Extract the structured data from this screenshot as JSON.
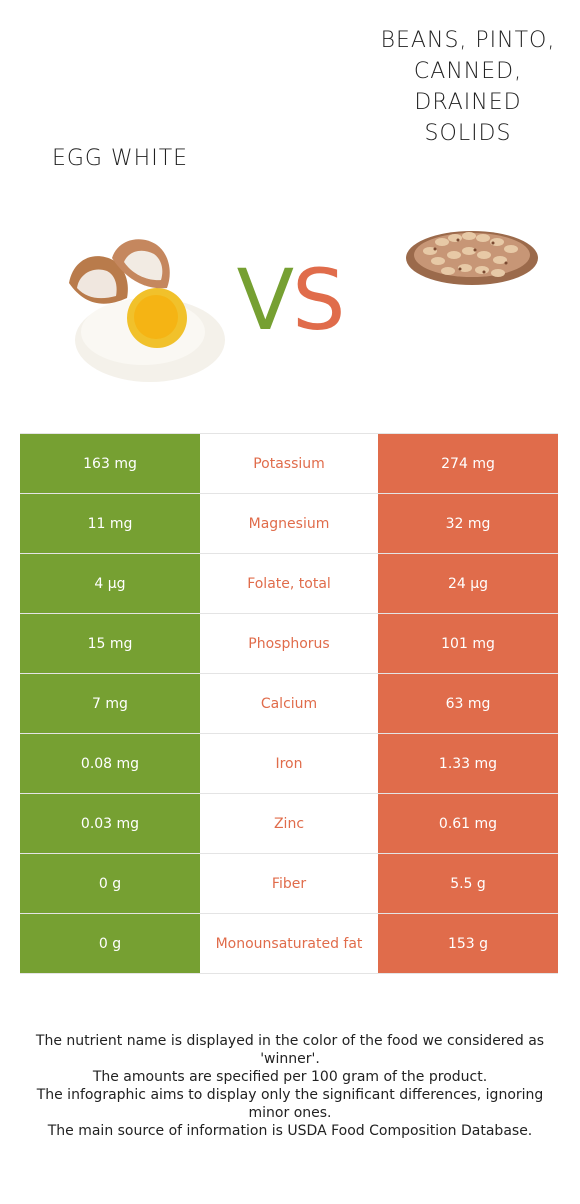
{
  "header": {
    "left_food": "EGG WHITE",
    "right_food": "BEANS, PINTO, CANNED, DRAINED SOLIDS",
    "vs_v": "V",
    "vs_s": "S"
  },
  "colors": {
    "left_winner": "#76a032",
    "right_winner": "#e06c4b"
  },
  "nutrients": [
    {
      "nutrient": "Potassium",
      "left": "163 mg",
      "right": "274 mg"
    },
    {
      "nutrient": "Magnesium",
      "left": "11 mg",
      "right": "32 mg"
    },
    {
      "nutrient": "Folate, total",
      "left": "4 µg",
      "right": "24 µg"
    },
    {
      "nutrient": "Phosphorus",
      "left": "15 mg",
      "right": "101 mg"
    },
    {
      "nutrient": "Calcium",
      "left": "7 mg",
      "right": "63 mg"
    },
    {
      "nutrient": "Iron",
      "left": "0.08 mg",
      "right": "1.33 mg"
    },
    {
      "nutrient": "Zinc",
      "left": "0.03 mg",
      "right": "0.61 mg"
    },
    {
      "nutrient": "Fiber",
      "left": "0 g",
      "right": "5.5 g"
    },
    {
      "nutrient": "Monounsaturated fat",
      "left": "0 g",
      "right": "153 g"
    }
  ],
  "footnotes": [
    "The nutrient name is displayed in the color of the food we considered as 'winner'.",
    "The amounts are specified per 100 gram of the product.",
    "The infographic aims to display only the significant differences, ignoring minor ones.",
    "The main source of information is USDA Food Composition Database."
  ]
}
